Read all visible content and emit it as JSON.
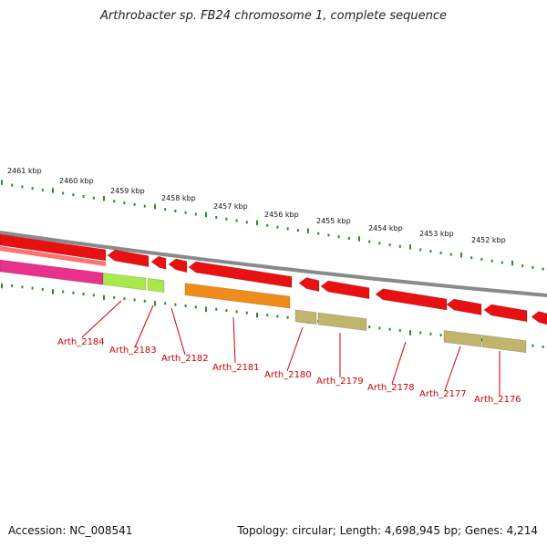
{
  "title": "Arthrobacter sp. FB24 chromosome 1, complete sequence",
  "footer": {
    "accession": "Accession: NC_008541",
    "stats": "Topology: circular; Length: 4,698,945 bp; Genes: 4,214"
  },
  "colors": {
    "backbone": "#8a8a8a",
    "tick": "#2d8a2d",
    "label": "#cc0000",
    "leader": "#cc0000"
  },
  "scale_labels": [
    "2461 kbp",
    "2460 kbp",
    "2459 kbp",
    "2458 kbp",
    "2457 kbp",
    "2456 kbp",
    "2455 kbp",
    "2454 kbp",
    "2453 kbp",
    "2452 kbp"
  ],
  "genes": [
    {
      "id": "Arth_2184",
      "color": "#e8318c"
    },
    {
      "id": "Arth_2183",
      "color": "#a9e84a"
    },
    {
      "id": "Arth_2182",
      "color": "#a9e84a"
    },
    {
      "id": "Arth_2181",
      "color": "#f08c1c"
    },
    {
      "id": "Arth_2180",
      "color": "#c1b56e"
    },
    {
      "id": "Arth_2179",
      "color": "#c1b56e"
    },
    {
      "id": "Arth_2178",
      "color": "#e01010"
    },
    {
      "id": "Arth_2177",
      "color": "#c1b56e"
    },
    {
      "id": "Arth_2176",
      "color": "#c1b56e"
    }
  ],
  "forward_features": [
    "f1",
    "f2",
    "f3",
    "f4",
    "f5",
    "f6",
    "f7",
    "f8",
    "f9",
    "f10",
    "f11"
  ]
}
